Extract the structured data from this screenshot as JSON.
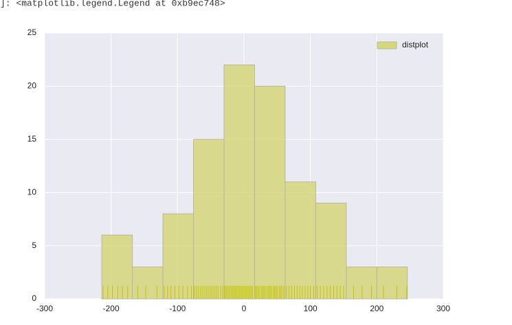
{
  "cell_output": "]: <matplotlib.legend.Legend at 0xb9ec748>",
  "chart_data": {
    "type": "histogram",
    "bins": [
      -214,
      -168,
      -122,
      -76,
      -30,
      16,
      62,
      108,
      154,
      200,
      246
    ],
    "series": [
      {
        "name": "distplot",
        "color": "#d6d67c",
        "values": [
          6,
          3,
          8,
          15,
          22,
          20,
          11,
          9,
          3,
          3
        ]
      }
    ],
    "rug": [
      -212,
      -205,
      -198,
      -190,
      -183,
      -175,
      -160,
      -148,
      -131,
      -120,
      -115,
      -110,
      -104,
      -98,
      -92,
      -85,
      -79,
      -75,
      -72,
      -69,
      -66,
      -63,
      -60,
      -57,
      -54,
      -51,
      -48,
      -45,
      -42,
      -39,
      -35,
      -32,
      -29,
      -27,
      -25,
      -23,
      -21,
      -19,
      -17,
      -15,
      -13,
      -11,
      -9,
      -7,
      -5,
      -3,
      -1,
      1,
      3,
      5,
      7,
      9,
      11,
      13,
      17,
      19,
      21,
      23,
      26,
      28,
      30,
      32,
      35,
      37,
      39,
      41,
      44,
      46,
      48,
      50,
      53,
      55,
      57,
      60,
      64,
      68,
      72,
      76,
      80,
      84,
      88,
      92,
      96,
      100,
      105,
      110,
      115,
      120,
      125,
      130,
      135,
      140,
      145,
      150,
      165,
      178,
      192,
      210,
      230,
      245
    ],
    "rug_color": "#c4c400",
    "xlim": [
      -300,
      300
    ],
    "xticks": [
      -300,
      -200,
      -100,
      0,
      100,
      200,
      300
    ],
    "ylim": [
      0,
      25
    ],
    "yticks": [
      0,
      5,
      10,
      15,
      20,
      25
    ],
    "grid": true,
    "legend": "upper right"
  }
}
